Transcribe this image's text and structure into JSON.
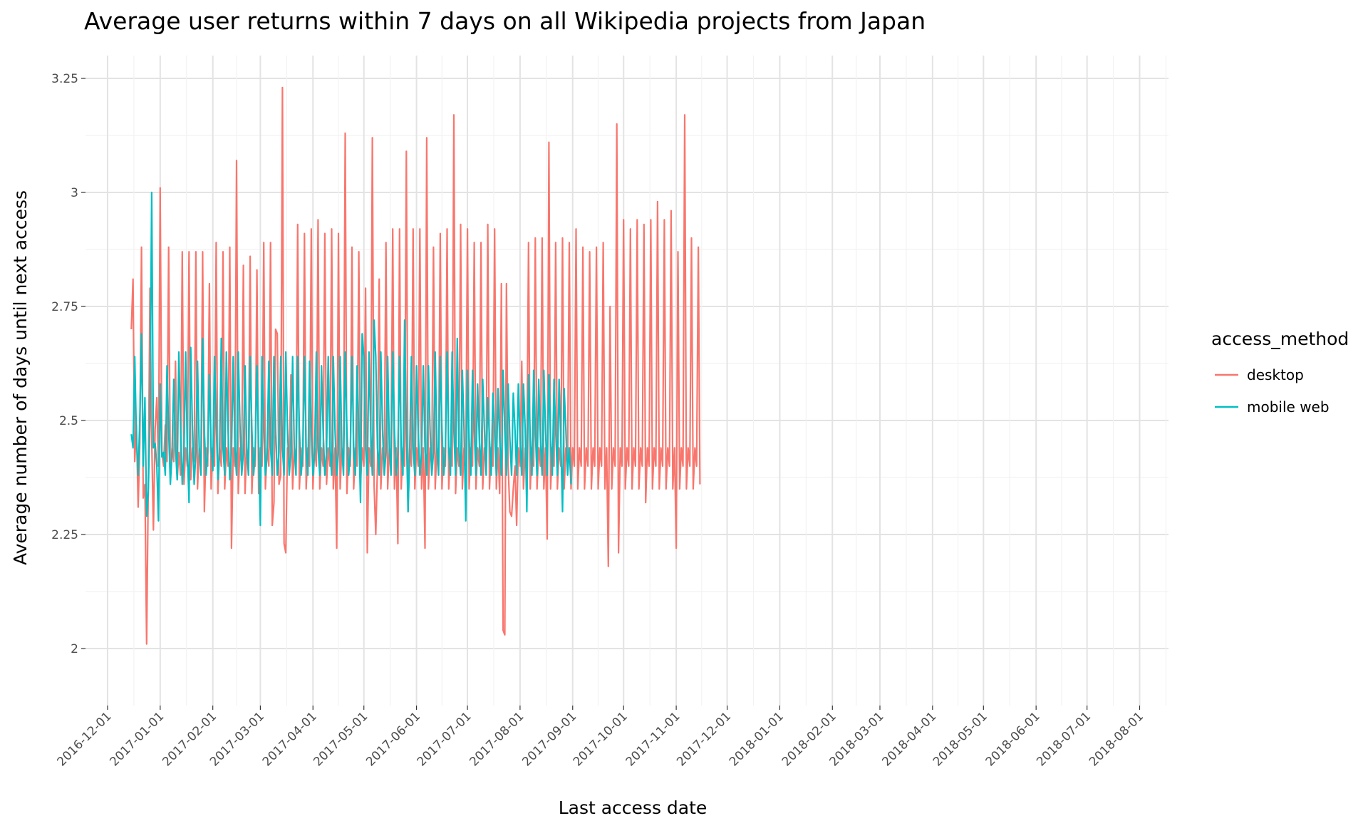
{
  "chart_data": {
    "type": "line",
    "title": "Average user returns within 7 days on all Wikipedia projects from Japan",
    "xlabel": "Last access date",
    "ylabel": "Average number of days until next access",
    "x_range": [
      "2016-11-18",
      "2018-08-18"
    ],
    "ylim": [
      1.875,
      3.3
    ],
    "y_ticks": [
      2,
      2.25,
      2.5,
      2.75,
      3,
      3.25
    ],
    "y_tick_labels": [
      "2",
      "2.25",
      "2.5",
      "2.75",
      "3",
      "3.25"
    ],
    "x_ticks": [
      "2016-12-01",
      "2017-01-01",
      "2017-02-01",
      "2017-03-01",
      "2017-04-01",
      "2017-05-01",
      "2017-06-01",
      "2017-07-01",
      "2017-08-01",
      "2017-09-01",
      "2017-10-01",
      "2017-11-01",
      "2017-12-01",
      "2018-01-01",
      "2018-02-01",
      "2018-03-01",
      "2018-04-01",
      "2018-05-01",
      "2018-06-01",
      "2018-07-01",
      "2018-08-01"
    ],
    "x_tick_labels": [
      "2016-12-01",
      "2017-01-01",
      "2017-02-01",
      "2017-03-01",
      "2017-04-01",
      "2017-05-01",
      "2017-06-01",
      "2017-07-01",
      "2017-08-01",
      "2017-09-01",
      "2017-10-01",
      "2017-11-01",
      "2017-12-01",
      "2018-01-01",
      "2018-02-01",
      "2018-03-01",
      "2018-04-01",
      "2018-05-01",
      "2018-06-01",
      "2018-07-01",
      "2018-08-01"
    ],
    "grid": true,
    "legend": {
      "title": "access_method",
      "position": "right"
    },
    "date_start": "2016-12-15",
    "series": [
      {
        "name": "desktop",
        "color": "#F8766D",
        "values": [
          2.7,
          2.81,
          2.41,
          2.49,
          2.31,
          2.45,
          2.88,
          2.33,
          2.36,
          2.01,
          2.37,
          2.79,
          2.46,
          2.26,
          2.48,
          2.55,
          2.4,
          3.01,
          2.43,
          2.4,
          2.49,
          2.41,
          2.88,
          2.37,
          2.44,
          2.41,
          2.63,
          2.37,
          2.43,
          2.38,
          2.87,
          2.36,
          2.44,
          2.4,
          2.87,
          2.37,
          2.44,
          2.41,
          2.87,
          2.35,
          2.44,
          2.4,
          2.87,
          2.3,
          2.44,
          2.4,
          2.8,
          2.35,
          2.44,
          2.4,
          2.89,
          2.34,
          2.44,
          2.4,
          2.87,
          2.35,
          2.44,
          2.4,
          2.88,
          2.22,
          2.44,
          2.4,
          3.07,
          2.34,
          2.44,
          2.4,
          2.84,
          2.34,
          2.44,
          2.4,
          2.86,
          2.34,
          2.44,
          2.4,
          2.83,
          2.34,
          2.44,
          2.4,
          2.89,
          2.35,
          2.44,
          2.4,
          2.89,
          2.27,
          2.32,
          2.7,
          2.69,
          2.36,
          2.38,
          3.23,
          2.23,
          2.21,
          2.44,
          2.41,
          2.6,
          2.35,
          2.44,
          2.4,
          2.93,
          2.35,
          2.44,
          2.4,
          2.91,
          2.35,
          2.44,
          2.4,
          2.92,
          2.35,
          2.44,
          2.4,
          2.94,
          2.35,
          2.44,
          2.4,
          2.91,
          2.36,
          2.44,
          2.4,
          2.92,
          2.35,
          2.44,
          2.22,
          2.91,
          2.35,
          2.44,
          2.4,
          3.13,
          2.34,
          2.44,
          2.4,
          2.88,
          2.35,
          2.44,
          2.4,
          2.87,
          2.36,
          2.44,
          2.4,
          2.79,
          2.21,
          2.44,
          2.4,
          3.12,
          2.36,
          2.25,
          2.4,
          2.81,
          2.35,
          2.44,
          2.4,
          2.89,
          2.35,
          2.44,
          2.4,
          2.92,
          2.35,
          2.44,
          2.23,
          2.92,
          2.35,
          2.44,
          2.4,
          3.09,
          2.3,
          2.44,
          2.4,
          2.92,
          2.35,
          2.44,
          2.4,
          2.92,
          2.35,
          2.44,
          2.22,
          3.12,
          2.35,
          2.44,
          2.4,
          2.88,
          2.35,
          2.44,
          2.4,
          2.91,
          2.35,
          2.44,
          2.4,
          2.92,
          2.35,
          2.44,
          2.4,
          3.17,
          2.34,
          2.44,
          2.4,
          2.93,
          2.35,
          2.44,
          2.4,
          2.92,
          2.35,
          2.44,
          2.4,
          2.89,
          2.35,
          2.44,
          2.4,
          2.89,
          2.35,
          2.44,
          2.4,
          2.93,
          2.35,
          2.44,
          2.4,
          2.92,
          2.35,
          2.44,
          2.34,
          2.8,
          2.04,
          2.03,
          2.8,
          2.4,
          2.3,
          2.29,
          2.35,
          2.4,
          2.27,
          2.44,
          2.4,
          2.63,
          2.35,
          2.44,
          2.4,
          2.89,
          2.35,
          2.44,
          2.4,
          2.9,
          2.35,
          2.44,
          2.4,
          2.9,
          2.35,
          2.44,
          2.24,
          3.11,
          2.35,
          2.44,
          2.4,
          2.89,
          2.35,
          2.44,
          2.4,
          2.9,
          2.35,
          2.44,
          2.4,
          2.89,
          2.35,
          2.44,
          2.4,
          2.92,
          2.35,
          2.44,
          2.4,
          2.88,
          2.35,
          2.44,
          2.4,
          2.87,
          2.35,
          2.44,
          2.4,
          2.88,
          2.35,
          2.44,
          2.4,
          2.89,
          2.35,
          2.44,
          2.18,
          2.75,
          2.35,
          2.44,
          2.4,
          3.15,
          2.21,
          2.44,
          2.4,
          2.94,
          2.35,
          2.44,
          2.4,
          2.92,
          2.35,
          2.44,
          2.4,
          2.94,
          2.35,
          2.44,
          2.4,
          2.93,
          2.32,
          2.44,
          2.4,
          2.94,
          2.35,
          2.44,
          2.4,
          2.98,
          2.35,
          2.44,
          2.4,
          2.94,
          2.35,
          2.44,
          2.4,
          2.96,
          2.35,
          2.44,
          2.22,
          2.87,
          2.35,
          2.44,
          2.4,
          3.17,
          2.35,
          2.44,
          2.4,
          2.9,
          2.35,
          2.44,
          2.4,
          2.88,
          2.36
        ]
      },
      {
        "name": "mobile web",
        "color": "#00BFC4",
        "values": [
          2.47,
          2.44,
          2.64,
          2.46,
          2.38,
          2.5,
          2.69,
          2.4,
          2.55,
          2.29,
          2.35,
          2.51,
          3.0,
          2.44,
          2.45,
          2.4,
          2.28,
          2.58,
          2.42,
          2.43,
          2.38,
          2.62,
          2.48,
          2.36,
          2.43,
          2.59,
          2.44,
          2.37,
          2.65,
          2.49,
          2.36,
          2.43,
          2.65,
          2.44,
          2.32,
          2.66,
          2.48,
          2.36,
          2.43,
          2.63,
          2.44,
          2.38,
          2.68,
          2.48,
          2.38,
          2.43,
          2.6,
          2.44,
          2.39,
          2.64,
          2.5,
          2.37,
          2.43,
          2.68,
          2.44,
          2.38,
          2.65,
          2.48,
          2.37,
          2.43,
          2.64,
          2.44,
          2.38,
          2.65,
          2.49,
          2.38,
          2.43,
          2.62,
          2.44,
          2.38,
          2.64,
          2.48,
          2.38,
          2.43,
          2.62,
          2.44,
          2.27,
          2.64,
          2.48,
          2.38,
          2.43,
          2.63,
          2.44,
          2.38,
          2.64,
          2.48,
          2.38,
          2.43,
          2.64,
          2.44,
          2.38,
          2.65,
          2.48,
          2.38,
          2.43,
          2.64,
          2.44,
          2.38,
          2.64,
          2.48,
          2.38,
          2.43,
          2.64,
          2.44,
          2.38,
          2.63,
          2.48,
          2.38,
          2.43,
          2.65,
          2.44,
          2.38,
          2.62,
          2.48,
          2.38,
          2.43,
          2.64,
          2.44,
          2.38,
          2.64,
          2.48,
          2.38,
          2.43,
          2.64,
          2.44,
          2.38,
          2.65,
          2.48,
          2.38,
          2.43,
          2.64,
          2.44,
          2.38,
          2.62,
          2.48,
          2.32,
          2.69,
          2.64,
          2.44,
          2.38,
          2.65,
          2.48,
          2.38,
          2.72,
          2.64,
          2.44,
          2.38,
          2.65,
          2.48,
          2.38,
          2.43,
          2.64,
          2.44,
          2.38,
          2.65,
          2.48,
          2.38,
          2.43,
          2.64,
          2.44,
          2.38,
          2.72,
          2.48,
          2.3,
          2.43,
          2.64,
          2.44,
          2.38,
          2.62,
          2.48,
          2.38,
          2.43,
          2.62,
          2.44,
          2.38,
          2.62,
          2.48,
          2.38,
          2.43,
          2.65,
          2.44,
          2.38,
          2.64,
          2.48,
          2.38,
          2.43,
          2.65,
          2.44,
          2.38,
          2.65,
          2.48,
          2.38,
          2.68,
          2.44,
          2.38,
          2.61,
          2.48,
          2.28,
          2.61,
          2.46,
          2.38,
          2.61,
          2.48,
          2.38,
          2.58,
          2.46,
          2.38,
          2.59,
          2.48,
          2.38,
          2.55,
          2.46,
          2.38,
          2.56,
          2.48,
          2.38,
          2.57,
          2.46,
          2.38,
          2.61,
          2.48,
          2.38,
          2.58,
          2.46,
          2.38,
          2.56,
          2.48,
          2.38,
          2.58,
          2.46,
          2.38,
          2.58,
          2.48,
          2.3,
          2.6,
          2.46,
          2.38,
          2.61,
          2.48,
          2.38,
          2.59,
          2.46,
          2.38,
          2.61,
          2.48,
          2.38,
          2.6,
          2.46,
          2.38,
          2.59,
          2.48,
          2.38,
          2.59,
          2.46,
          2.3,
          2.57,
          2.48,
          2.38,
          2.44,
          2.36
        ]
      }
    ]
  }
}
